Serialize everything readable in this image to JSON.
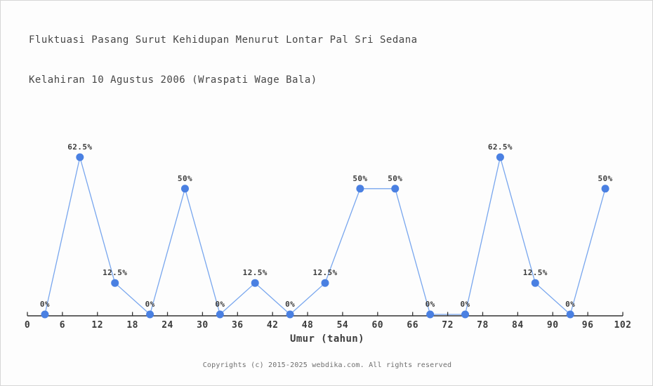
{
  "header": {
    "title_line1": "Fluktuasi Pasang Surut Kehidupan Menurut Lontar Pal Sri Sedana",
    "title_line2": "Kelahiran 10 Agustus 2006 (Wraspati Wage Bala)"
  },
  "chart_data": {
    "type": "line",
    "title": "Fluktuasi Pasang Surut Kehidupan Menurut Lontar Pal Sri Sedana",
    "subtitle": "Kelahiran 10 Agustus 2006 (Wraspati Wage Bala)",
    "x": [
      3,
      9,
      15,
      21,
      27,
      33,
      39,
      45,
      51,
      57,
      63,
      69,
      75,
      81,
      87,
      93,
      99
    ],
    "values": [
      0,
      62.5,
      12.5,
      0,
      50,
      0,
      12.5,
      0,
      12.5,
      50,
      50,
      0,
      0,
      62.5,
      12.5,
      0,
      50
    ],
    "point_labels": [
      "0%",
      "62.5%",
      "12.5%",
      "0%",
      "50%",
      "0%",
      "12.5%",
      "0%",
      "12.5%",
      "50%",
      "50%",
      "0%",
      "0%",
      "62.5%",
      "12.5%",
      "0%",
      "50%"
    ],
    "x_ticks": [
      0,
      6,
      12,
      18,
      24,
      30,
      36,
      42,
      48,
      54,
      60,
      66,
      72,
      78,
      84,
      90,
      96,
      102
    ],
    "xlim": [
      0,
      102
    ],
    "ylim": [
      0,
      100
    ],
    "xlabel": "Umur (tahun)",
    "grid": false,
    "legend_position": "none",
    "colors": {
      "marker": "#4a80e2",
      "line": "#78a6ee",
      "axis": "#333333",
      "tick_label": "#3a3a3a",
      "point_label": "#3d3d3d"
    }
  },
  "footer": {
    "copyright": "Copyrights (c) 2015-2025 webdika.com. All rights reserved"
  }
}
